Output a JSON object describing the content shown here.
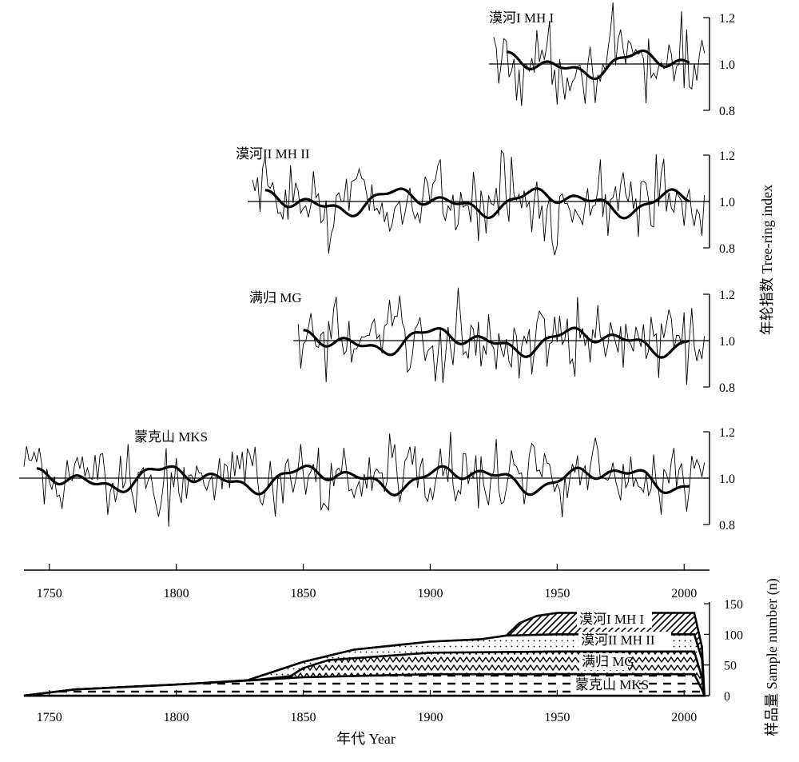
{
  "chart_data": {
    "type": "line",
    "x_tick_labels": [
      "1750",
      "1800",
      "1850",
      "1900",
      "1950",
      "2000"
    ],
    "index_tick_labels": [
      "1.2",
      "1.0",
      "0.8"
    ],
    "sample_tick_labels": [
      "150",
      "100",
      "50",
      "0"
    ],
    "xlabel": "年代 Year",
    "ylabel_index": "年轮指数  Tree-ring index",
    "ylabel_sample": "样品量 Sample number (n)",
    "xlim": [
      1740,
      2010
    ],
    "index_ylim": [
      0.8,
      1.2
    ],
    "sample_ylim": [
      0,
      150
    ],
    "chronologies": [
      {
        "name": "漠河I MH I",
        "start": 1925,
        "end": 2008,
        "smooth_start": 1930,
        "smooth_end": 2002
      },
      {
        "name": "漠河II  MH II",
        "start": 1830,
        "end": 2008,
        "smooth_start": 1835,
        "smooth_end": 2002
      },
      {
        "name": "满归 MG",
        "start": 1848,
        "end": 2008,
        "smooth_start": 1850,
        "smooth_end": 2002
      },
      {
        "name": "蒙克山 MKS",
        "start": 1740,
        "end": 2008,
        "smooth_start": 1745,
        "smooth_end": 2002
      }
    ],
    "sample_layers": [
      {
        "name": "蒙克山 MKS",
        "cumulative": [
          [
            1740,
            0
          ],
          [
            1750,
            5
          ],
          [
            1760,
            10
          ],
          [
            1800,
            18
          ],
          [
            1830,
            25
          ],
          [
            1850,
            30
          ],
          [
            1900,
            35
          ],
          [
            1950,
            35
          ],
          [
            2004,
            35
          ],
          [
            2007,
            10
          ],
          [
            2008,
            0
          ]
        ]
      },
      {
        "name": "满归 MG",
        "cumulative": [
          [
            1740,
            0
          ],
          [
            1750,
            5
          ],
          [
            1760,
            10
          ],
          [
            1800,
            18
          ],
          [
            1830,
            25
          ],
          [
            1845,
            32
          ],
          [
            1850,
            45
          ],
          [
            1860,
            58
          ],
          [
            1900,
            70
          ],
          [
            1950,
            72
          ],
          [
            2004,
            72
          ],
          [
            2007,
            30
          ],
          [
            2008,
            0
          ]
        ]
      },
      {
        "name": "漠河II MH II",
        "cumulative": [
          [
            1740,
            0
          ],
          [
            1750,
            5
          ],
          [
            1760,
            10
          ],
          [
            1800,
            18
          ],
          [
            1828,
            25
          ],
          [
            1850,
            55
          ],
          [
            1870,
            75
          ],
          [
            1900,
            88
          ],
          [
            1920,
            92
          ],
          [
            1930,
            98
          ],
          [
            1950,
            100
          ],
          [
            2004,
            100
          ],
          [
            2007,
            60
          ],
          [
            2008,
            0
          ]
        ]
      },
      {
        "name": "漠河I MH I",
        "cumulative": [
          [
            1740,
            0
          ],
          [
            1750,
            5
          ],
          [
            1760,
            10
          ],
          [
            1800,
            18
          ],
          [
            1828,
            25
          ],
          [
            1850,
            55
          ],
          [
            1870,
            75
          ],
          [
            1900,
            88
          ],
          [
            1920,
            92
          ],
          [
            1930,
            98
          ],
          [
            1935,
            118
          ],
          [
            1942,
            130
          ],
          [
            1950,
            135
          ],
          [
            2004,
            135
          ],
          [
            2007,
            80
          ],
          [
            2008,
            0
          ]
        ]
      }
    ]
  }
}
